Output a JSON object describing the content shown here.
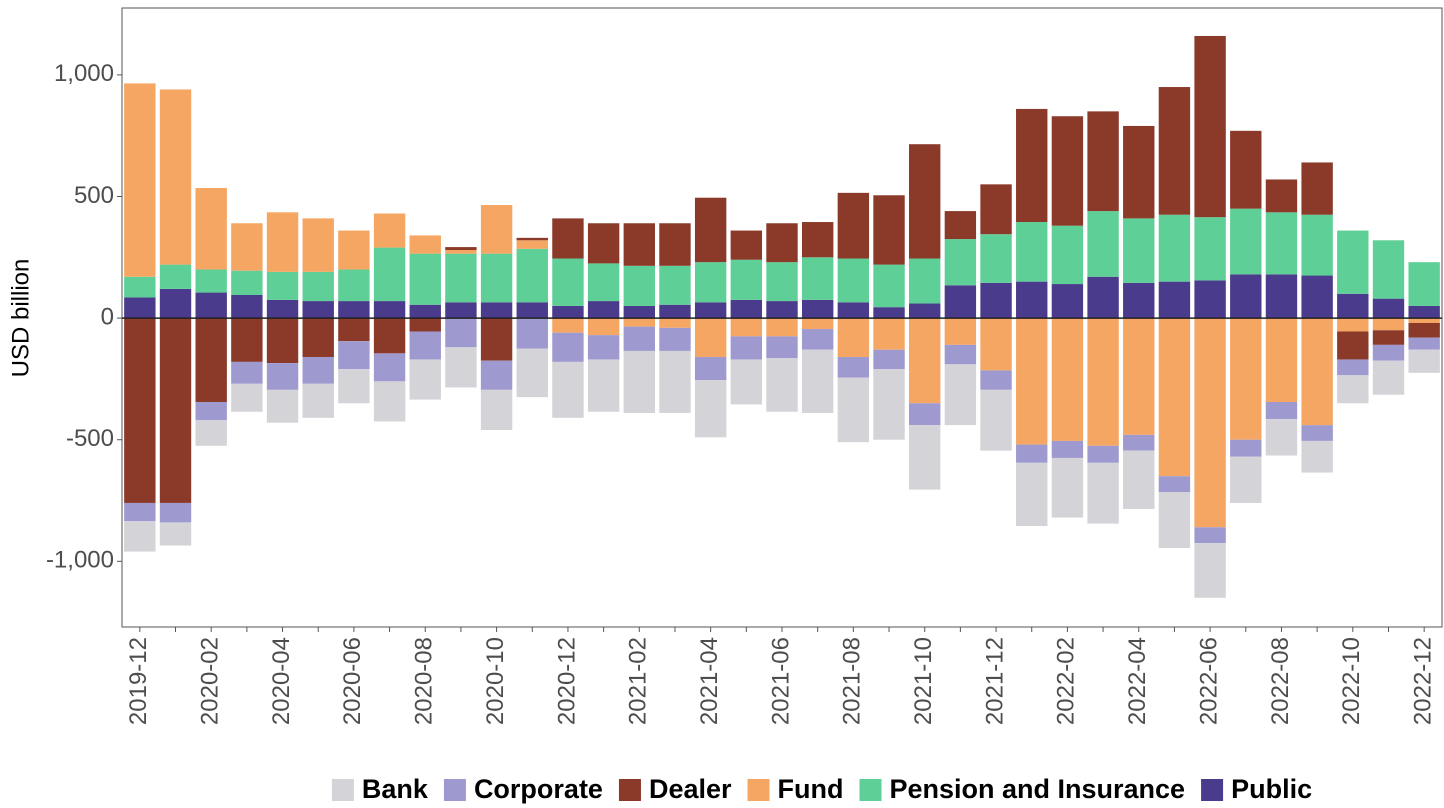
{
  "chart_data": {
    "type": "stacked_bar",
    "y_label": "USD billion",
    "categories": [
      "2019-12",
      null,
      "2020-02",
      null,
      "2020-04",
      null,
      "2020-06",
      null,
      "2020-08",
      null,
      "2020-10",
      null,
      "2020-12",
      null,
      "2021-02",
      null,
      "2021-04",
      null,
      "2021-06",
      null,
      "2021-08",
      null,
      "2021-10",
      null,
      "2021-12",
      null,
      "2022-02",
      null,
      "2022-04",
      null,
      "2022-06",
      null,
      "2022-08",
      null,
      "2022-10",
      null,
      "2022-12"
    ],
    "series": [
      {
        "name": "Bank",
        "color": "#d4d3d7",
        "values": [
          -125,
          -95,
          -105,
          -115,
          -135,
          -140,
          -140,
          -165,
          -165,
          -165,
          -165,
          -200,
          -230,
          -215,
          -255,
          -255,
          -235,
          -185,
          -220,
          -260,
          -265,
          -290,
          -265,
          -250,
          -250,
          -260,
          -245,
          -250,
          -240,
          -230,
          -225,
          -190,
          -150,
          -130,
          -115,
          -140,
          -95
        ]
      },
      {
        "name": "Corporate",
        "color": "#9e9ad0",
        "values": [
          -75,
          -80,
          -75,
          -90,
          -110,
          -110,
          -115,
          -115,
          -115,
          -120,
          -120,
          -125,
          -120,
          -100,
          -100,
          -95,
          -95,
          -95,
          -90,
          -85,
          -85,
          -80,
          -90,
          -80,
          -80,
          -75,
          -70,
          -70,
          -65,
          -65,
          -65,
          -70,
          -70,
          -65,
          -65,
          -65,
          -50
        ]
      },
      {
        "name": "Dealer",
        "color": "#8b3a2a",
        "values": [
          -760,
          -760,
          -345,
          -180,
          -185,
          -160,
          -95,
          -145,
          -55,
          12,
          -175,
          10,
          165,
          165,
          175,
          175,
          265,
          120,
          160,
          145,
          270,
          285,
          470,
          115,
          205,
          465,
          450,
          410,
          380,
          525,
          745,
          320,
          135,
          215,
          -115,
          -60,
          -60
        ]
      },
      {
        "name": "Fund",
        "color": "#f5a663",
        "values": [
          795,
          720,
          335,
          195,
          245,
          220,
          160,
          140,
          75,
          15,
          200,
          35,
          -60,
          -70,
          -35,
          -40,
          -160,
          -75,
          -75,
          -45,
          -160,
          -130,
          -350,
          -110,
          -215,
          -520,
          -505,
          -525,
          -480,
          -650,
          -860,
          -500,
          -345,
          -440,
          -55,
          -50,
          -20
        ]
      },
      {
        "name": "Pension and Insurance",
        "color": "#5fcf98",
        "values": [
          85,
          100,
          95,
          100,
          115,
          120,
          130,
          220,
          210,
          200,
          200,
          220,
          195,
          155,
          165,
          160,
          165,
          165,
          160,
          175,
          180,
          175,
          185,
          190,
          200,
          245,
          240,
          270,
          265,
          275,
          260,
          270,
          255,
          250,
          260,
          240,
          180
        ]
      },
      {
        "name": "Public",
        "color": "#4a3b8c",
        "values": [
          85,
          120,
          105,
          95,
          75,
          70,
          70,
          70,
          55,
          65,
          65,
          65,
          50,
          70,
          50,
          55,
          65,
          75,
          70,
          75,
          65,
          45,
          60,
          135,
          145,
          150,
          140,
          170,
          145,
          150,
          155,
          180,
          180,
          175,
          100,
          80,
          50
        ]
      }
    ],
    "ylim": [
      -1270,
      1275
    ],
    "yticks": [
      {
        "value": -1000,
        "label": "-1,000"
      },
      -500,
      0,
      500,
      {
        "value": 1000,
        "label": "1,000"
      }
    ],
    "grid": false,
    "legend": "bottom"
  }
}
